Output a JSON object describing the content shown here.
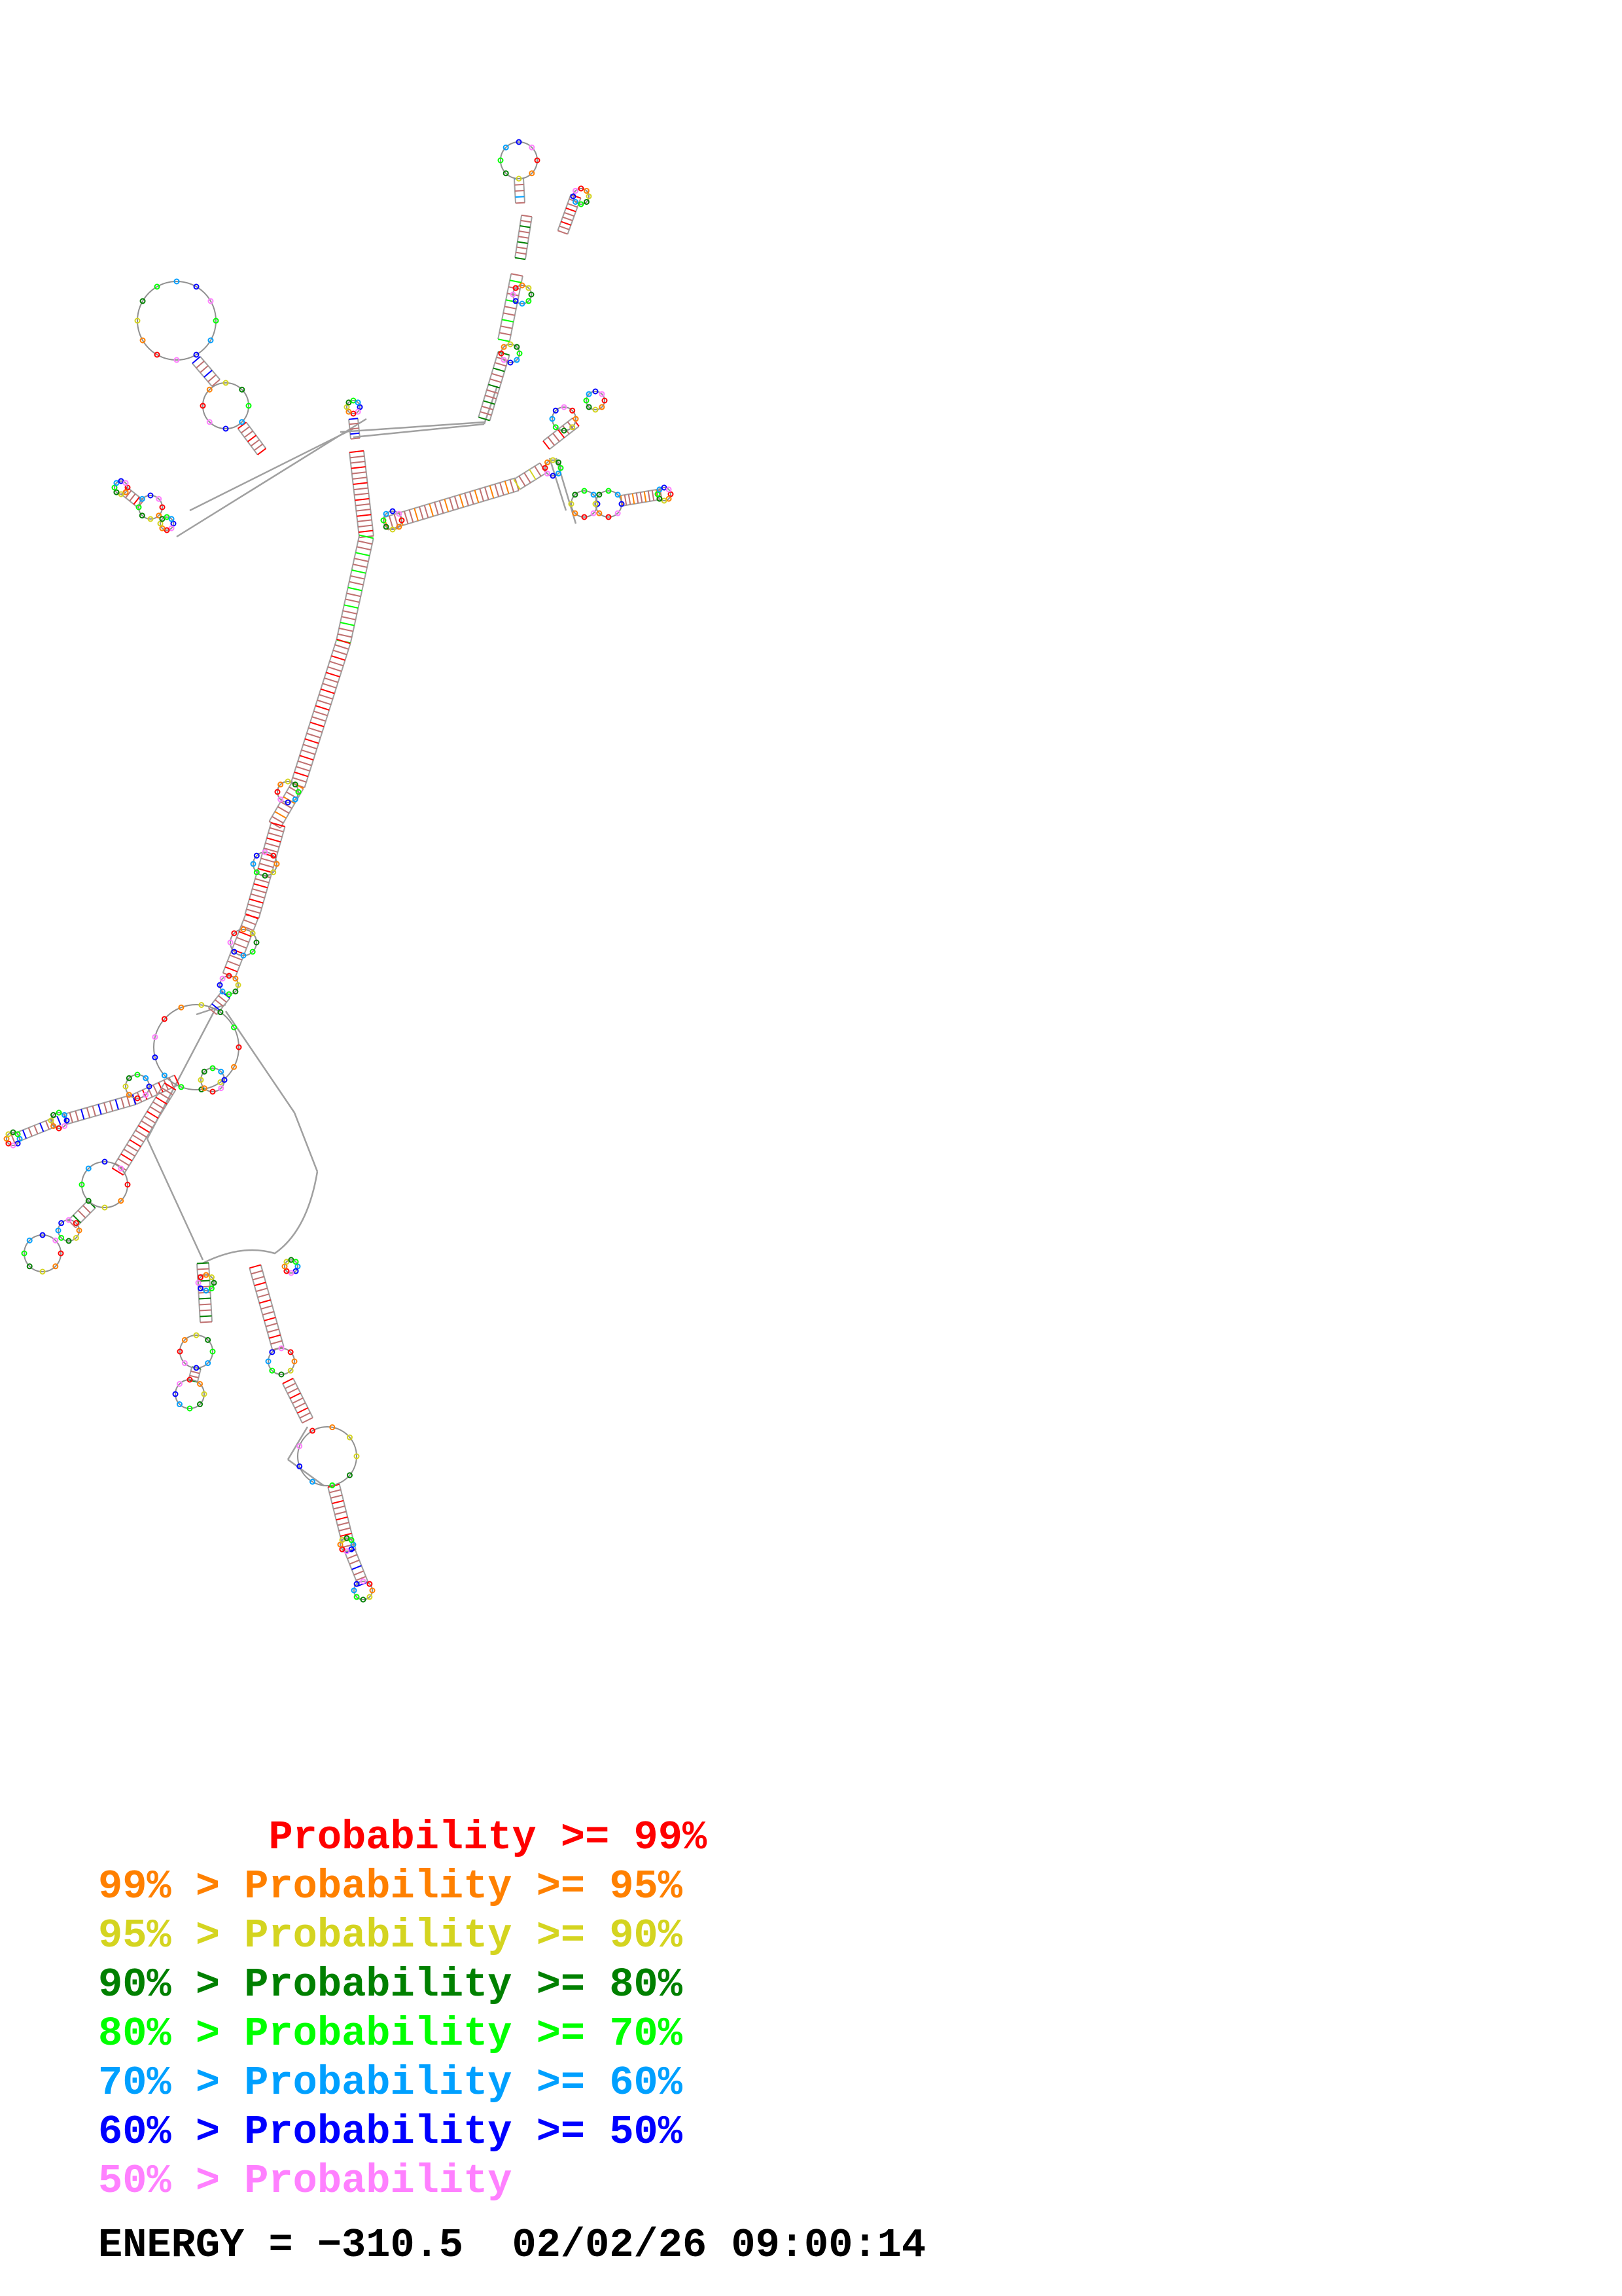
{
  "legend": [
    {
      "prefix": "       ",
      "label": "Probability >= 99%",
      "color": "#ff0000"
    },
    {
      "prefix": "99% > ",
      "label": "Probability >= 95%",
      "color": "#ff8000"
    },
    {
      "prefix": "95% > ",
      "label": "Probability >= 90%",
      "color": "#d4d420"
    },
    {
      "prefix": "90% > ",
      "label": "Probability >= 80%",
      "color": "#008000"
    },
    {
      "prefix": "80% > ",
      "label": "Probability >= 70%",
      "color": "#00ff00"
    },
    {
      "prefix": "70% > ",
      "label": "Probability >= 60%",
      "color": "#00a0ff"
    },
    {
      "prefix": "60% > ",
      "label": "Probability >= 50%",
      "color": "#0000ff"
    },
    {
      "prefix": "50% > ",
      "label": "Probability",
      "color": "#ff80ff"
    }
  ],
  "footer": {
    "energy": "ENERGY = −310.5",
    "timestamp": "02/02/26 09:00:14"
  },
  "palette": {
    "backbone": "#a0a0a0",
    "pair": "#c07070"
  }
}
